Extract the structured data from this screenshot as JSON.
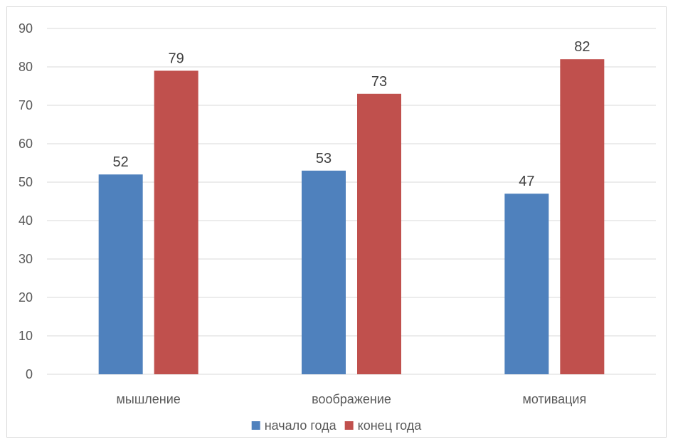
{
  "chart_data": {
    "type": "bar",
    "categories": [
      "мышление",
      "воображение",
      "мотивация"
    ],
    "series": [
      {
        "name": "начало года",
        "values": [
          52,
          53,
          47
        ],
        "color": "#4f81bd"
      },
      {
        "name": "конец года",
        "values": [
          79,
          73,
          82
        ],
        "color": "#c0504d"
      }
    ],
    "ylim": [
      0,
      90
    ],
    "yticks": [
      0,
      10,
      20,
      30,
      40,
      50,
      60,
      70,
      80,
      90
    ],
    "grid": true,
    "legend": "bottom",
    "title": "",
    "xlabel": "",
    "ylabel": ""
  }
}
